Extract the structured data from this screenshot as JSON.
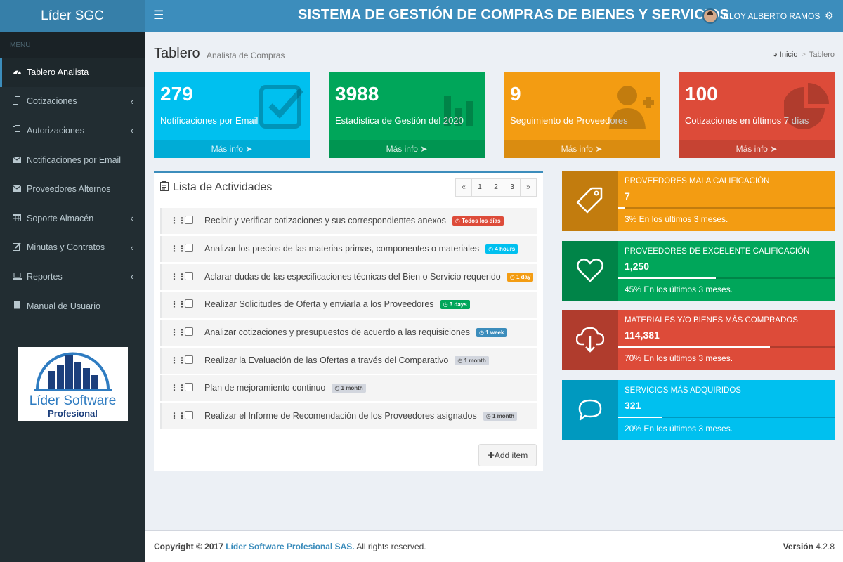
{
  "app": {
    "logo": "Líder SGC",
    "title": "SISTEMA DE GESTIÓN DE COMPRAS DE BIENES Y SERVICIOS",
    "user": "ELOY ALBERTO RAMOS"
  },
  "sidebar": {
    "header": "MENU",
    "items": [
      {
        "label": "Tablero Analista",
        "icon": "dashboard-icon"
      },
      {
        "label": "Cotizaciones",
        "icon": "copy-icon"
      },
      {
        "label": "Autorizaciones",
        "icon": "copy-icon"
      },
      {
        "label": "Notificaciones por Email",
        "icon": "envelope-icon"
      },
      {
        "label": "Proveedores Alternos",
        "icon": "envelope-icon"
      },
      {
        "label": "Soporte Almacén",
        "icon": "calendar-icon"
      },
      {
        "label": "Minutas y Contratos",
        "icon": "edit-icon"
      },
      {
        "label": "Reportes",
        "icon": "laptop-icon"
      },
      {
        "label": "Manual de Usuario",
        "icon": "book-icon"
      }
    ],
    "brand": {
      "line1": "Líder Software",
      "line2": "Profesional"
    }
  },
  "content": {
    "title": "Tablero",
    "subtitle": "Analista de Compras",
    "breadcrumb": {
      "home": "Inicio",
      "current": "Tablero"
    }
  },
  "stats": [
    {
      "value": "279",
      "label": "Notificaciones por Email",
      "more": "Más info",
      "color": "#00c0ef",
      "icon": "checkbox-icon"
    },
    {
      "value": "3988",
      "label": "Estadistica de Gestión del 2020",
      "more": "Más info",
      "color": "#00a65a",
      "icon": "bar-chart-icon"
    },
    {
      "value": "9",
      "label": "Seguimiento de Proveedores",
      "more": "Más info",
      "color": "#f39c12",
      "icon": "user-plus-icon"
    },
    {
      "value": "100",
      "label": "Cotizaciones en últimos 7 días",
      "more": "Más info",
      "color": "#dd4b39",
      "icon": "pie-chart-icon"
    }
  ],
  "todo": {
    "title": "Lista de Actividades",
    "pager": [
      "«",
      "1",
      "2",
      "3",
      "»"
    ],
    "items": [
      {
        "text": "Recibir y verificar cotizaciones y sus correspondientes anexos",
        "badge": "Todos los días",
        "badge_color": "#dd4b39"
      },
      {
        "text": "Analizar los precios de las materias primas, componentes o materiales",
        "badge": "4 hours",
        "badge_color": "#00c0ef"
      },
      {
        "text": "Aclarar dudas de las especificaciones técnicas del Bien o Servicio requerido",
        "badge": "1 day",
        "badge_color": "#f39c12"
      },
      {
        "text": "Realizar Solicitudes de Oferta y enviarla a los Proveedores",
        "badge": "3 days",
        "badge_color": "#00a65a"
      },
      {
        "text": "Analizar cotizaciones y presupuestos de acuerdo a las requisiciones",
        "badge": "1 week",
        "badge_color": "#3c8dbc"
      },
      {
        "text": "Realizar la Evaluación de las Ofertas a través del Comparativo",
        "badge": "1 month",
        "badge_color": "#d2d6de"
      },
      {
        "text": "Plan de mejoramiento continuo",
        "badge": "1 month",
        "badge_color": "#d2d6de"
      },
      {
        "text": "Realizar el Informe de Recomendación de los Proveedores asignados",
        "badge": "1 month",
        "badge_color": "#d2d6de"
      }
    ],
    "add_label": "Add item"
  },
  "info_boxes": [
    {
      "title": "PROVEEDORES MALA CALIFICACIÓN",
      "value": "7",
      "progress": 3,
      "desc": "3% En los últimos 3 meses.",
      "color": "#f39c12",
      "icon": "tag-icon"
    },
    {
      "title": "PROVEEDORES DE EXCELENTE CALIFICACIÓN",
      "value": "1,250",
      "progress": 45,
      "desc": "45% En los últimos 3 meses.",
      "color": "#00a65a",
      "icon": "heart-icon"
    },
    {
      "title": "MATERIALES Y/O BIENES MÁS COMPRADOS",
      "value": "114,381",
      "progress": 70,
      "desc": "70% En los últimos 3 meses.",
      "color": "#dd4b39",
      "icon": "cloud-download-icon"
    },
    {
      "title": "SERVICIOS MÁS ADQUIRIDOS",
      "value": "321",
      "progress": 20,
      "desc": "20% En los últimos 3 meses.",
      "color": "#00c0ef",
      "icon": "chat-bubble-icon"
    }
  ],
  "footer": {
    "copy_prefix": "Copyright © 2017",
    "company": "Líder Software Profesional SAS.",
    "rights": "All rights reserved.",
    "version_label": "Versión",
    "version": "4.2.8"
  }
}
